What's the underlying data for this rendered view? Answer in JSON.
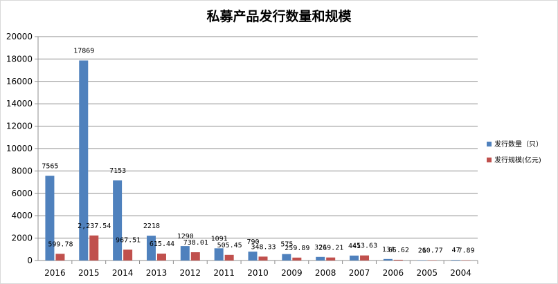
{
  "chart_data": {
    "type": "bar",
    "title": "私募产品发行数量和规模",
    "categories": [
      "2016",
      "2015",
      "2014",
      "2013",
      "2012",
      "2011",
      "2010",
      "2009",
      "2008",
      "2007",
      "2006",
      "2005",
      "2004"
    ],
    "series": [
      {
        "name": "发行数量（只）",
        "color": "#4F81BD",
        "values": [
          7565,
          17869,
          7153,
          2218,
          1290,
          1091,
          790,
          575,
          321,
          441,
          134,
          26,
          47
        ],
        "labels": [
          "7565",
          "17869",
          "7153",
          "2218",
          "1290",
          "1091",
          "790",
          "575",
          "321",
          "441",
          "134",
          "26",
          "47"
        ]
      },
      {
        "name": "发行规模(亿元)",
        "color": "#C0504D",
        "values": [
          599.78,
          2237.54,
          967.51,
          615.44,
          738.01,
          505.45,
          348.33,
          259.89,
          269.21,
          453.63,
          65.62,
          10.77,
          7.89
        ],
        "labels": [
          "599.78",
          "2,237.54",
          "967.51",
          "615.44",
          "738.01",
          "505.45",
          "348.33",
          "259.89",
          "269.21",
          "453.63",
          "65.62",
          "10.77",
          "7.89"
        ]
      }
    ],
    "yticks": [
      "0",
      "2000",
      "4000",
      "6000",
      "8000",
      "10000",
      "12000",
      "14000",
      "16000",
      "18000",
      "20000"
    ],
    "ylim": [
      0,
      20000
    ],
    "grid": true,
    "legend": "right"
  }
}
